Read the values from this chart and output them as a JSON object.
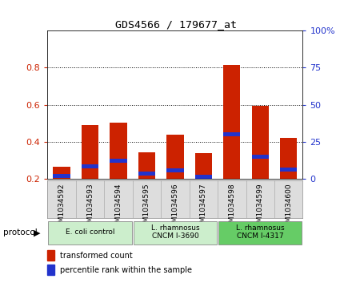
{
  "title": "GDS4566 / 179677_at",
  "samples": [
    "GSM1034592",
    "GSM1034593",
    "GSM1034594",
    "GSM1034595",
    "GSM1034596",
    "GSM1034597",
    "GSM1034598",
    "GSM1034599",
    "GSM1034600"
  ],
  "transformed_count": [
    0.265,
    0.49,
    0.505,
    0.345,
    0.44,
    0.34,
    0.815,
    0.595,
    0.42
  ],
  "percentile_rank": [
    0.215,
    0.27,
    0.3,
    0.23,
    0.245,
    0.21,
    0.44,
    0.32,
    0.25
  ],
  "bar_bottom": 0.2,
  "red_color": "#cc2200",
  "blue_color": "#2233cc",
  "ylim_left": [
    0.2,
    1.0
  ],
  "ylim_right": [
    0,
    100
  ],
  "yticks_left": [
    0.2,
    0.4,
    0.6,
    0.8
  ],
  "yticks_right": [
    0,
    25,
    50,
    75,
    100
  ],
  "protocols": [
    {
      "label": "E. coli control",
      "start": 0,
      "end": 3,
      "color": "#cceecc"
    },
    {
      "label": "L. rhamnosus\nCNCM I-3690",
      "start": 3,
      "end": 6,
      "color": "#cceecc"
    },
    {
      "label": "L. rhamnosus\nCNCM I-4317",
      "start": 6,
      "end": 9,
      "color": "#66cc66"
    }
  ],
  "legend_red": "transformed count",
  "legend_blue": "percentile rank within the sample",
  "bar_width": 0.6,
  "plot_bg": "#ffffff",
  "protocol_label": "protocol",
  "left_tick_color": "#cc2200",
  "right_tick_color": "#2233cc",
  "blue_bar_height": 0.022
}
